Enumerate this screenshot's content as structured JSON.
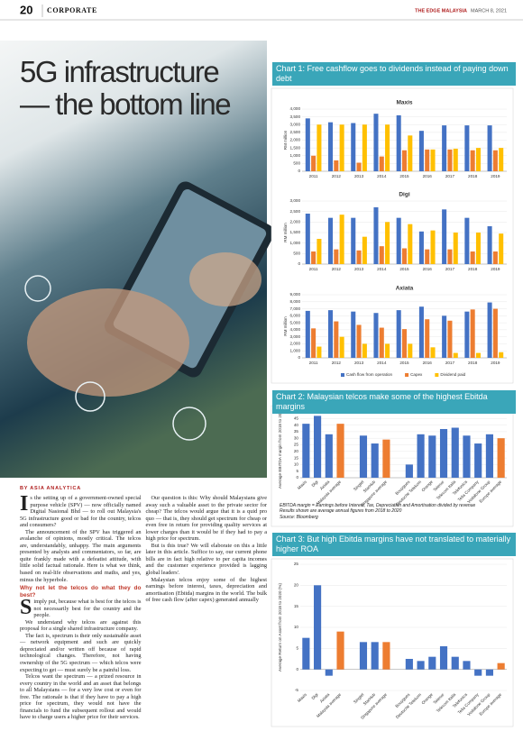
{
  "header": {
    "page_number": "20",
    "section": "CORPORATE",
    "publication": "THE EDGE MALAYSIA",
    "date": "MARCH 8, 2021"
  },
  "headline": "5G infrastructure — the bottom line",
  "article": {
    "byline": "BY ASIA ANALYTICA",
    "intro": [
      "Is the setting up of a government-owned special purpose vehicle (SPV) — now officially named Digital Nasional Bhd — to roll out Malaysia's 5G infrastructure good or bad for the country, telcos and consumers?",
      "The announcement of the SPV has triggered an avalanche of opinions, mostly critical. The telcos are, understandably, unhappy. The main arguments presented by analysts and commentators, so far, are quite frankly made with a defeatist attitude, with little solid factual rationale. Here is what we think, based on real-life observations and maths, and yes, minus the hyperbole."
    ],
    "subhead": "Why not let the telcos do what they do best?",
    "paragraphs": [
      "Simply put, because what is best for the telcos is not necessarily best for the country and the people.",
      "We understand why telcos are against this proposal for a single shared infrastructure company.",
      "The fact is, spectrum is their only sustainable asset — network equipment and such are quickly depreciated and/or written off because of rapid technological changes. Therefore, not having ownership of the 5G spectrum — which telcos were expecting to get — must surely be a painful loss.",
      "Telcos want the spectrum — a prized resource in every country in the world and an asset that belongs to all Malaysians — for a very low cost or even for free. The rationale is that if they have to pay a high price for spectrum, they would not have the financials to fund the subsequent rollout and would have to charge users a higher price for their services.",
      "Our question is this: Why should Malaysians give away such a valuable asset to the private sector for cheap? The telcos would argue that it is a quid pro quo — that is, they should get spectrum for cheap or even free in return for providing quality services at lower charges than it would be if they had to pay a high price for spectrum.",
      "But is this true? We will elaborate on this a little later in this article. Suffice to say, our current phone bills are in fact high relative to per capita incomes and the customer experience provided is lagging global leaders'.",
      "Malaysian telcos enjoy some of the highest earnings before interest, taxes, depreciation and amortisation (Ebitda) margins in the world. The bulk of free cash flow (after capex) generated annually"
    ]
  },
  "panels": [
    {
      "title": "Chart 1: Free cashflow goes to dividends instead of paying down debt"
    },
    {
      "title": "Chart 2: Malaysian telcos make some of the highest Ebitda margins",
      "notes": [
        "EBITDA margin = Earnings before Interest, Tax, Depreciation and Amortisation divided by revenue",
        "Results shown are average annual figures from 2018 to 2020",
        "Source: Bloomberg"
      ]
    },
    {
      "title": "Chart 3: But high Ebitda margins have not translated to materially higher ROA"
    }
  ],
  "chart_data": [
    {
      "type": "bar",
      "title": "Maxis",
      "y_label": "RM million",
      "categories": [
        "2011",
        "2012",
        "2013",
        "2014",
        "2015",
        "2016",
        "2017",
        "2018",
        "2019"
      ],
      "series": [
        {
          "name": "Cash flow from operation",
          "color": "#4472c4",
          "values": [
            3400,
            3150,
            3100,
            3700,
            3600,
            2600,
            2950,
            2950,
            2950
          ]
        },
        {
          "name": "Capex",
          "color": "#ed7d31",
          "values": [
            1000,
            700,
            550,
            950,
            1350,
            1400,
            1400,
            1350,
            1350
          ]
        },
        {
          "name": "Dividend paid",
          "color": "#ffc000",
          "values": [
            3000,
            3000,
            3000,
            3000,
            2300,
            1400,
            1450,
            1500,
            1500
          ]
        }
      ],
      "ylim": [
        0,
        4000
      ],
      "yticks": [
        0,
        500,
        {
          "value": 1000,
          "label": "1,000"
        },
        {
          "value": 1500,
          "label": "1,500"
        },
        {
          "value": 2000,
          "label": "2,000"
        },
        {
          "value": 2500,
          "label": "2,500"
        },
        {
          "value": 3000,
          "label": "3,000"
        },
        {
          "value": 3500,
          "label": "3,500"
        },
        {
          "value": 4000,
          "label": "4,000"
        }
      ]
    },
    {
      "type": "bar",
      "title": "Digi",
      "y_label": "RM million",
      "categories": [
        "2011",
        "2012",
        "2013",
        "2014",
        "2015",
        "2016",
        "2017",
        "2018",
        "2019"
      ],
      "series": [
        {
          "color": "#4472c4",
          "values": [
            2400,
            2200,
            2200,
            2700,
            2200,
            1550,
            2600,
            2200,
            1800
          ]
        },
        {
          "color": "#ed7d31",
          "values": [
            600,
            700,
            650,
            850,
            750,
            700,
            700,
            600,
            600
          ]
        },
        {
          "color": "#ffc000",
          "values": [
            1200,
            2350,
            1300,
            2000,
            1900,
            1600,
            1500,
            1500,
            1450
          ]
        }
      ],
      "ylim": [
        0,
        3000
      ],
      "yticks": [
        0,
        500,
        {
          "value": 1000,
          "label": "1,000"
        },
        {
          "value": 1500,
          "label": "1,500"
        },
        {
          "value": 2000,
          "label": "2,000"
        },
        {
          "value": 2500,
          "label": "2,500"
        },
        {
          "value": 3000,
          "label": "3,000"
        }
      ]
    },
    {
      "type": "bar",
      "title": "Axiata",
      "y_label": "RM million",
      "categories": [
        "2011",
        "2012",
        "2013",
        "2014",
        "2015",
        "2016",
        "2017",
        "2018",
        "2019"
      ],
      "series": [
        {
          "color": "#4472c4",
          "values": [
            6700,
            6800,
            6600,
            6400,
            6800,
            7300,
            6000,
            6600,
            7900
          ]
        },
        {
          "color": "#ed7d31",
          "values": [
            4200,
            5200,
            4700,
            4300,
            4100,
            5500,
            5300,
            6900,
            7000
          ]
        },
        {
          "color": "#ffc000",
          "values": [
            1600,
            3000,
            2000,
            2000,
            2000,
            1500,
            700,
            700,
            800
          ]
        }
      ],
      "ylim": [
        0,
        9000
      ],
      "yticks": [
        0,
        {
          "value": 1000,
          "label": "1,000"
        },
        {
          "value": 2000,
          "label": "2,000"
        },
        {
          "value": 3000,
          "label": "3,000"
        },
        {
          "value": 4000,
          "label": "4,000"
        },
        {
          "value": 5000,
          "label": "5,000"
        },
        {
          "value": 6000,
          "label": "6,000"
        },
        {
          "value": 7000,
          "label": "7,000"
        },
        {
          "value": 8000,
          "label": "8,000"
        },
        {
          "value": 9000,
          "label": "9,000"
        }
      ]
    },
    {
      "type": "bar",
      "y_label": "Average EBITDA margin from 2018 to 2020 (%)",
      "categories": [
        "Maxis",
        "Digi",
        "Axiata",
        "Malaysia average",
        null,
        "Singtel",
        "StarHub",
        "Singapore average",
        null,
        "Bouygues",
        "Deutsche Telekom",
        "Orange",
        "Telenor",
        "Telecom Italia",
        "Telefonica",
        "Telia Company",
        "Vodafone Group",
        "Europe average"
      ],
      "values": [
        41,
        47,
        33,
        41,
        null,
        32,
        26,
        29,
        null,
        10,
        33,
        32,
        37,
        38,
        32,
        26,
        33,
        30
      ],
      "colors": [
        "#4472c4",
        "#4472c4",
        "#4472c4",
        "#ed7d31",
        null,
        "#4472c4",
        "#4472c4",
        "#ed7d31",
        null,
        "#4472c4",
        "#4472c4",
        "#4472c4",
        "#4472c4",
        "#4472c4",
        "#4472c4",
        "#4472c4",
        "#4472c4",
        "#ed7d31"
      ],
      "ylim": [
        0,
        50
      ],
      "yticks": [
        0,
        5,
        10,
        15,
        20,
        25,
        30,
        35,
        40,
        45,
        50
      ]
    },
    {
      "type": "bar",
      "y_label": "Average Return on Asset from 2018 to 2020 (%)",
      "categories": [
        "Maxis",
        "Digi",
        "Axiata",
        "Malaysia average",
        null,
        "Singtel",
        "StarHub",
        "Singapore average",
        null,
        "Bouygues",
        "Deutsche Telekom",
        "Orange",
        "Telenor",
        "Telecom Italia",
        "Telefonica",
        "Telia Company",
        "Vodafone Group",
        "Europe average"
      ],
      "values": [
        7.5,
        20,
        -1.5,
        9,
        null,
        6.5,
        6.5,
        6.5,
        null,
        2.5,
        2,
        3,
        5.5,
        3,
        2,
        -1.5,
        -1.5,
        1.5
      ],
      "colors": [
        "#4472c4",
        "#4472c4",
        "#4472c4",
        "#ed7d31",
        null,
        "#4472c4",
        "#4472c4",
        "#ed7d31",
        null,
        "#4472c4",
        "#4472c4",
        "#4472c4",
        "#4472c4",
        "#4472c4",
        "#4472c4",
        "#4472c4",
        "#4472c4",
        "#ed7d31"
      ],
      "ylim": [
        -5,
        25
      ],
      "yticks": [
        -5,
        0,
        5,
        10,
        15,
        20,
        25
      ]
    }
  ]
}
